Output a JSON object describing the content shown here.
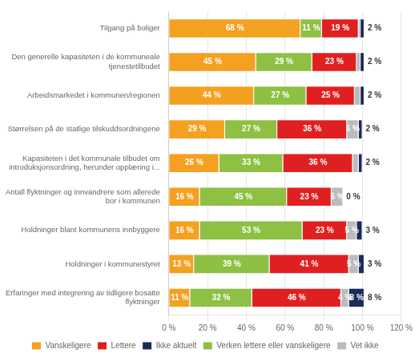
{
  "chart_data": {
    "type": "bar",
    "orientation": "horizontal",
    "stacked": true,
    "categories": [
      "Tilgang på boliger",
      "Den generelle kapasiteten i de kommuneale\ntjenestetilbudet",
      "Arbeidsmarkedet i kommunen/regionen",
      "Størrelsen på de statlige tilskuddsordningene",
      "Kapasiteten i det kommunale tilbudet om\nintroduksjonsordning, herunder opplæring i...",
      "Antall flyktninger og innvandrere som allerede\nbor i kommunen",
      "Holdninger blant kommunens innbyggere",
      "Holdninger i kommunestyret",
      "Erfaringer med integrering av tidligere bosatte\nflyktninger"
    ],
    "series": [
      {
        "name": "Vanskeligere",
        "color": "#F4A020",
        "values": [
          68,
          45,
          44,
          29,
          26,
          16,
          16,
          13,
          11
        ],
        "value_labels": [
          "68 %",
          "45 %",
          "44 %",
          "29 %",
          "26 %",
          "16 %",
          "16 %",
          "13 %",
          "11 %"
        ]
      },
      {
        "name": "Verken lettere eller vanskeligere",
        "color": "#8EC043",
        "values": [
          11,
          29,
          27,
          27,
          33,
          45,
          53,
          39,
          32
        ],
        "value_labels": [
          "11 %",
          "29 %",
          "27 %",
          "27 %",
          "33 %",
          "45 %",
          "53 %",
          "39 %",
          "32 %"
        ]
      },
      {
        "name": "Lettere",
        "color": "#E02020",
        "values": [
          19,
          23,
          25,
          36,
          36,
          23,
          23,
          41,
          46
        ],
        "value_labels": [
          "19 %",
          "23 %",
          "25 %",
          "36 %",
          "36 %",
          "23 %",
          "23 %",
          "41 %",
          "46 %"
        ]
      },
      {
        "name": "Vet ikke",
        "color": "#BBBBBB",
        "values": [
          1,
          2,
          3,
          6,
          3,
          6,
          5,
          5,
          4
        ],
        "value_labels": [
          null,
          null,
          null,
          "6 %",
          null,
          "6 %",
          "5 %",
          "5 %",
          "4 %"
        ]
      },
      {
        "name": "Ikke aktuelt",
        "color": "#1A2B5A",
        "values": [
          2,
          2,
          2,
          2,
          2,
          0,
          3,
          3,
          8
        ],
        "value_labels": [
          null,
          null,
          null,
          null,
          null,
          null,
          null,
          null,
          "8 %"
        ]
      }
    ],
    "annotations": [
      {
        "category": "Tilgang på boliger",
        "text": "2 %"
      },
      {
        "category": "Den generelle kapasiteten i de kommuneale\ntjenestetilbudet",
        "text": "2 %"
      },
      {
        "category": "Arbeidsmarkedet i kommunen/regionen",
        "text": "2 %"
      },
      {
        "category": "Størrelsen på de statlige tilskuddsordningene",
        "text": "2 %"
      },
      {
        "category": "Kapasiteten i det kommunale tilbudet om\nintroduksjonsordning, herunder opplæring i...",
        "text": "2 %"
      },
      {
        "category": "Antall flyktninger og innvandrere som allerede\nbor i kommunen",
        "text": "0 %"
      },
      {
        "category": "Holdninger blant kommunens innbyggere",
        "text": "3 %"
      },
      {
        "category": "Holdninger i kommunestyret",
        "text": "3 %"
      },
      {
        "category": "Erfaringer med integrering av tidligere bosatte\nflyktninger",
        "text": "8 %"
      }
    ],
    "xlim": [
      0,
      120
    ],
    "xticks": [
      {
        "value": 0,
        "label": "0 %"
      },
      {
        "value": 20,
        "label": "20 %"
      },
      {
        "value": 40,
        "label": "40 %"
      },
      {
        "value": 60,
        "label": "60 %"
      },
      {
        "value": 80,
        "label": "80 %"
      },
      {
        "value": 100,
        "label": "100 %"
      },
      {
        "value": 120,
        "label": "120 %"
      }
    ],
    "grid": true,
    "data_labels": true,
    "legend": "bottom",
    "legend_entries": [
      "Vanskeligere",
      "Lettere",
      "Ikke aktuelt",
      "Verken lettere eller vanskeligere",
      "Vet ikke"
    ]
  }
}
